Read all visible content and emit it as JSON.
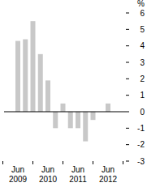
{
  "chart_data": {
    "type": "bar",
    "ylabel": "%",
    "categories": [
      "Jun 2009",
      null,
      null,
      null,
      "Jun 2010",
      null,
      null,
      null,
      "Jun 2011",
      null,
      null,
      null,
      "Jun 2012"
    ],
    "values": [
      4.3,
      4.4,
      5.5,
      3.5,
      1.9,
      -1.0,
      0.5,
      -1.0,
      -1.0,
      -1.8,
      -0.5,
      0,
      0.5
    ],
    "color": "#c8c8c8",
    "ylim": [
      -3,
      6
    ],
    "yticks": [
      -3,
      -2,
      -1,
      0,
      1,
      2,
      3,
      4,
      5,
      6
    ],
    "grid": false
  }
}
